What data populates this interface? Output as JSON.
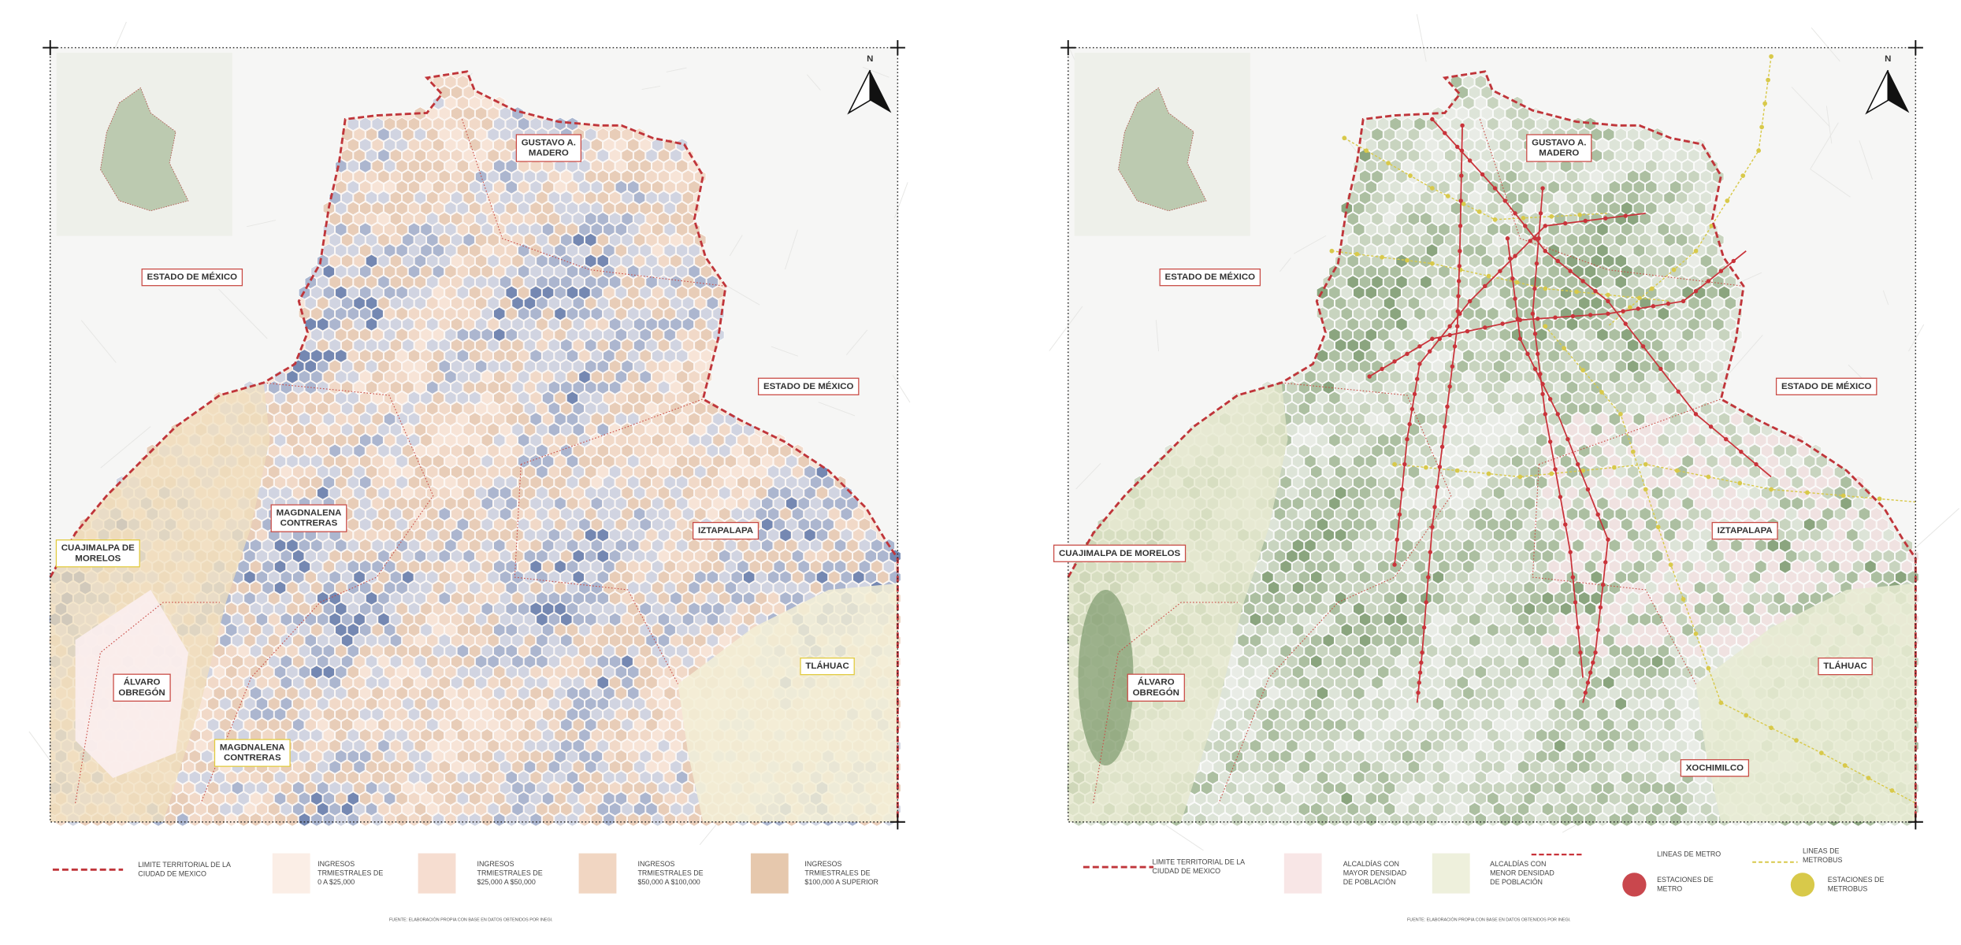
{
  "maps": [
    {
      "labels": [
        [
          "GUSTAVO A.",
          "MADERO"
        ],
        [
          "ESTADO DE MÉXICO"
        ],
        [
          "ESTADO DE MÉXICO"
        ],
        [
          "MAGDNALENA",
          "CONTRERAS"
        ],
        [
          "CUAJIMALPA DE",
          "MORELOS"
        ],
        [
          "IZTAPALAPA"
        ],
        [
          "ÁLVARO",
          "OBREGÓN"
        ],
        [
          "TLÁHUAC"
        ],
        [
          "MAGDNALENA",
          "CONTRERAS"
        ]
      ],
      "north": "N",
      "legend": [
        [
          "LIMITE TERRITORIAL DE LA",
          "CIUDAD DE MEXICO"
        ],
        [
          "INGRESOS",
          "TRMIESTRALES DE",
          "0 A $25,000"
        ],
        [
          "INGRESOS",
          "TRMIESTRALES DE",
          "$25,000 A $50,000"
        ],
        [
          "INGRESOS",
          "TRMIESTRALES DE",
          "$50,000 A $100,000"
        ],
        [
          "INGRESOS",
          "TRMIESTRALES DE",
          "$100,000 A  SUPERIOR"
        ]
      ],
      "source": "FUENTE: ELABORACIÓN PROPIA CON BASE EN DATOS OBTENIDOS POR INEGI."
    },
    {
      "labels": [
        [
          "GUSTAVO A.",
          "MADERO"
        ],
        [
          "ESTADO DE MÉXICO"
        ],
        [
          "ESTADO DE MÉXICO"
        ],
        [
          "CUAJIMALPA DE MORELOS"
        ],
        [
          "IZTAPALAPA"
        ],
        [
          "ÁLVARO",
          "OBREGÓN"
        ],
        [
          "TLÁHUAC"
        ],
        [
          "XOCHIMILCO"
        ]
      ],
      "north": "N",
      "legend": [
        [
          "LIMITE TERRITORIAL DE LA",
          "CIUDAD DE MEXICO"
        ],
        [
          "ALCALDÍAS CON",
          "MAYOR DENSIDAD",
          "DE POBLACIÓN"
        ],
        [
          "ALCALDÍAS CON",
          "MENOR DENSIDAD",
          "DE POBLACIÓN"
        ],
        [
          "LINEAS DE METRO"
        ],
        [
          "ESTACIONES DE",
          "METRO"
        ],
        [
          "LINEAS DE",
          "METROBUS"
        ],
        [
          "ESTACIONES DE",
          "METROBUS"
        ]
      ],
      "source": "FUENTE: ELABORACIÓN PROPIA CON BASE EN DATOS OBTENIDOS POR INEGI."
    }
  ]
}
